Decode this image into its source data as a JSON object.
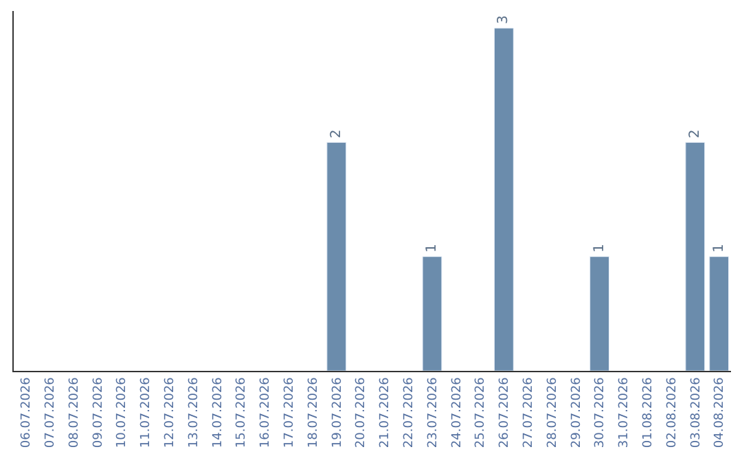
{
  "chart_data": {
    "type": "bar",
    "categories": [
      "06.07.2026",
      "07.07.2026",
      "08.07.2026",
      "09.07.2026",
      "10.07.2026",
      "11.07.2026",
      "12.07.2026",
      "13.07.2026",
      "14.07.2026",
      "15.07.2026",
      "16.07.2026",
      "17.07.2026",
      "18.07.2026",
      "19.07.2026",
      "20.07.2026",
      "21.07.2026",
      "22.07.2026",
      "23.07.2026",
      "24.07.2026",
      "25.07.2026",
      "26.07.2026",
      "27.07.2026",
      "28.07.2026",
      "29.07.2026",
      "30.07.2026",
      "31.07.2026",
      "01.08.2026",
      "02.08.2026",
      "03.08.2026",
      "04.08.2026"
    ],
    "values": [
      null,
      null,
      null,
      null,
      null,
      null,
      null,
      null,
      null,
      null,
      null,
      null,
      null,
      2,
      null,
      null,
      null,
      1,
      null,
      null,
      3,
      null,
      null,
      null,
      1,
      null,
      null,
      null,
      2,
      1
    ],
    "color": "#6b8cac",
    "data_labels": true,
    "tick_labels": "x"
  }
}
